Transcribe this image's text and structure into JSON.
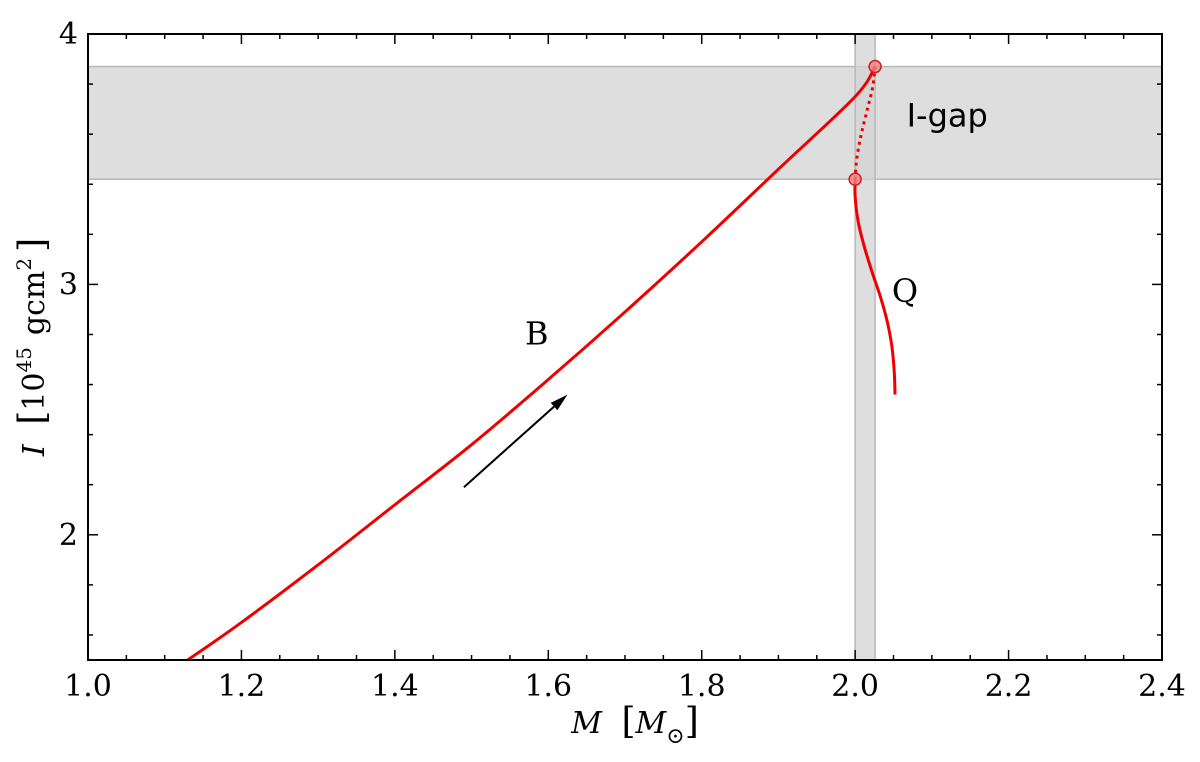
{
  "chart_data": {
    "type": "line",
    "xlabel": {
      "var": "M",
      "unit": "M",
      "unit_sub": "⊙"
    },
    "ylabel": {
      "var": "I",
      "unit_prefix": "10",
      "unit_exp": "45",
      "unit_main": "gcm",
      "unit_exp2": "2"
    },
    "xlim": [
      1.0,
      2.4
    ],
    "ylim": [
      1.5,
      4.0
    ],
    "x_ticks": [
      1.0,
      1.2,
      1.4,
      1.6,
      1.8,
      2.0,
      2.2,
      2.4
    ],
    "x_tick_labels": [
      "1.0",
      "1.2",
      "1.4",
      "1.6",
      "1.8",
      "2.0",
      "2.2",
      "2.4"
    ],
    "y_ticks": [
      2,
      3,
      4
    ],
    "y_tick_labels": [
      "2",
      "3",
      "4"
    ],
    "x_minor_step": 0.05,
    "y_minor_step": 0.2,
    "grid": false,
    "line_color": "#ee0000",
    "band_color": "#d3d3d3",
    "bands": {
      "horizontal": {
        "y": [
          3.42,
          3.87
        ]
      },
      "vertical": {
        "x": [
          2.0,
          2.026
        ]
      }
    },
    "series": [
      {
        "style": "solid",
        "x": [
          1.13,
          1.2,
          1.3,
          1.4,
          1.5,
          1.6,
          1.7,
          1.8,
          1.9,
          2.0,
          2.026
        ],
        "y": [
          1.5,
          1.65,
          1.88,
          2.12,
          2.36,
          2.62,
          2.89,
          3.17,
          3.46,
          3.75,
          3.87
        ]
      },
      {
        "style": "dotted",
        "x": [
          2.026,
          2.023,
          2.016,
          2.008,
          2.002,
          2.0
        ],
        "y": [
          3.87,
          3.79,
          3.7,
          3.6,
          3.5,
          3.42
        ]
      },
      {
        "style": "solid",
        "x": [
          2.0,
          2.0,
          2.004,
          2.012,
          2.022,
          2.033,
          2.042,
          2.048,
          2.051,
          2.052
        ],
        "y": [
          3.42,
          3.35,
          3.25,
          3.15,
          3.05,
          2.95,
          2.85,
          2.75,
          2.65,
          2.56
        ]
      }
    ],
    "markers": [
      {
        "x": 2.026,
        "y": 3.87
      },
      {
        "x": 2.0,
        "y": 3.42
      }
    ],
    "annotations": [
      {
        "text": "I-gap",
        "x": 2.12,
        "y": 3.63
      },
      {
        "text": "B",
        "x": 1.585,
        "y": 2.76
      },
      {
        "text": "Q",
        "x": 2.065,
        "y": 2.93
      }
    ],
    "arrow": {
      "from": [
        1.49,
        2.19
      ],
      "to": [
        1.625,
        2.56
      ],
      "color": "#000000"
    }
  }
}
